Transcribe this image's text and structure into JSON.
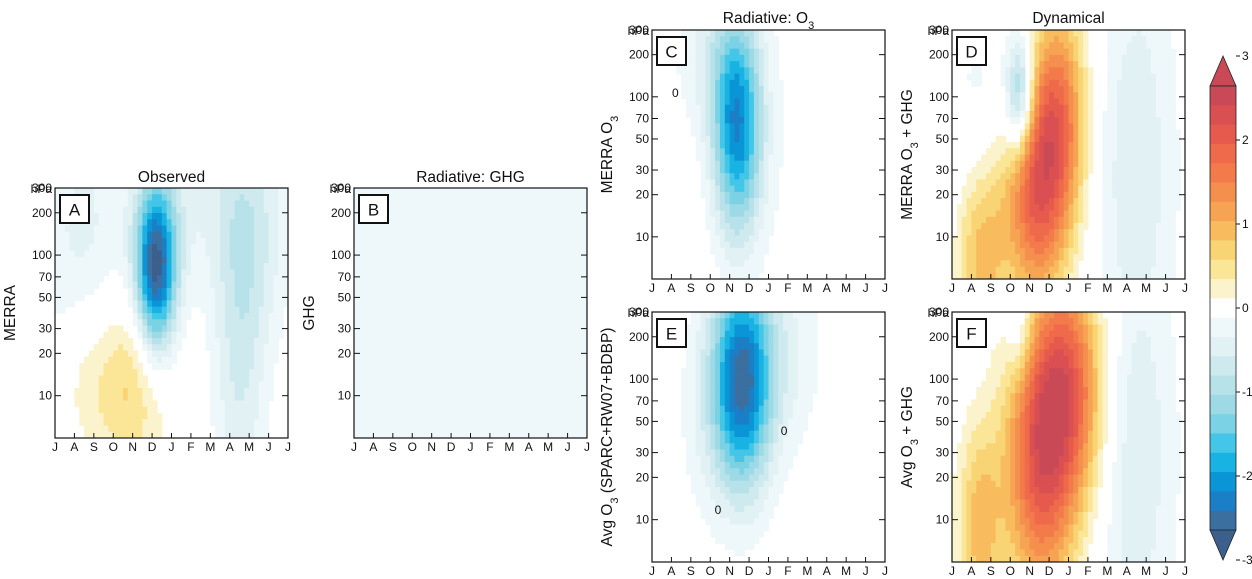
{
  "chart_data": [
    {
      "type": "heatmap",
      "panel_label": "A",
      "title": "Observed",
      "ylabel": "MERRA",
      "y_unit": "hPa",
      "months": [
        "J",
        "A",
        "S",
        "O",
        "N",
        "D",
        "J",
        "F",
        "M",
        "A",
        "M",
        "J",
        "J"
      ],
      "pressure_ticks": [
        10,
        20,
        30,
        50,
        70,
        100,
        200,
        300
      ],
      "ylim": [
        300,
        5
      ],
      "log_y": true,
      "blobs": [
        {
          "mi": 5.2,
          "p": 80,
          "sx": 0.75,
          "sy": 0.42,
          "amp": -3.0
        },
        {
          "mi": 3.6,
          "p": 12,
          "sx": 1.5,
          "sy": 0.45,
          "amp": 0.9
        },
        {
          "mi": 1.2,
          "p": 15,
          "sx": 0.9,
          "sy": 0.45,
          "amp": 0.4
        },
        {
          "mi": 9.5,
          "p": 30,
          "sx": 1.0,
          "sy": 1.1,
          "amp": -0.8
        },
        {
          "mi": 1.3,
          "p": 90,
          "sx": 1.5,
          "sy": 0.9,
          "amp": -0.6
        },
        {
          "mi": 6.8,
          "p": 250,
          "sx": 2.2,
          "sy": 0.5,
          "amp": -0.45
        },
        {
          "mi": 10.8,
          "p": 150,
          "sx": 1.2,
          "sy": 0.6,
          "amp": -0.45
        }
      ],
      "hatch": [
        {
          "m0": 5.2,
          "m1": 12,
          "p0": 300,
          "p1": 8
        }
      ],
      "contours": []
    },
    {
      "type": "heatmap",
      "panel_label": "B",
      "title": "Radiative: GHG",
      "ylabel": "GHG",
      "y_unit": "hPa",
      "months": [
        "J",
        "A",
        "S",
        "O",
        "N",
        "D",
        "J",
        "F",
        "M",
        "A",
        "M",
        "J",
        "J"
      ],
      "pressure_ticks": [
        10,
        20,
        30,
        50,
        70,
        100,
        200,
        300
      ],
      "ylim": [
        300,
        5
      ],
      "log_y": true,
      "blobs": [
        {
          "mi": 6,
          "p": 50,
          "sx": 12,
          "sy": 3,
          "amp": -0.4
        }
      ],
      "hatch": [
        {
          "m0": 0,
          "m1": 12,
          "p0": 300,
          "p1": 5
        }
      ],
      "contours": []
    },
    {
      "type": "heatmap",
      "panel_label": "C",
      "title": "Radiative: O",
      "title_sub": "3",
      "ylabel": "MERRA O",
      "ylabel_sub": "3",
      "y_unit": "hPa",
      "months": [
        "J",
        "A",
        "S",
        "O",
        "N",
        "D",
        "J",
        "F",
        "M",
        "A",
        "M",
        "J",
        "J"
      ],
      "pressure_ticks": [
        10,
        20,
        30,
        50,
        70,
        100,
        200,
        300
      ],
      "ylim": [
        300,
        5
      ],
      "log_y": true,
      "blobs": [
        {
          "mi": 4.4,
          "p": 60,
          "sx": 0.9,
          "sy": 0.55,
          "amp": -2.4
        },
        {
          "mi": 3.0,
          "p": 200,
          "sx": 1.4,
          "sy": 0.4,
          "amp": -0.5
        },
        {
          "mi": 8.5,
          "p": 50,
          "sx": 2.5,
          "sy": 1.2,
          "amp": -0.2
        }
      ],
      "hatch": [
        {
          "m0": 4.8,
          "m1": 12,
          "p0": 300,
          "p1": 5
        }
      ],
      "contours": [
        {
          "label": "0",
          "mi": 1.2,
          "p": 100
        }
      ]
    },
    {
      "type": "heatmap",
      "panel_label": "D",
      "title": "Dynamical",
      "ylabel": "MERRA O",
      "ylabel_sub": "3",
      "ylabel_suffix": " + GHG",
      "y_unit": "hPa",
      "months": [
        "J",
        "A",
        "S",
        "O",
        "N",
        "D",
        "J",
        "F",
        "M",
        "A",
        "M",
        "J",
        "J"
      ],
      "pressure_ticks": [
        10,
        20,
        30,
        50,
        70,
        100,
        200,
        300
      ],
      "ylim": [
        300,
        5
      ],
      "log_y": true,
      "blobs": [
        {
          "mi": 4.3,
          "p": 20,
          "sx": 1.2,
          "sy": 0.55,
          "amp": 2.1
        },
        {
          "mi": 5.5,
          "p": 80,
          "sx": 1.0,
          "sy": 0.55,
          "amp": 1.7
        },
        {
          "mi": 1.5,
          "p": 8,
          "sx": 0.9,
          "sy": 0.5,
          "amp": 1.2
        },
        {
          "mi": 3.5,
          "p": 100,
          "sx": 0.5,
          "sy": 0.3,
          "amp": -1.8
        },
        {
          "mi": 9.5,
          "p": 30,
          "sx": 1.5,
          "sy": 1.2,
          "amp": -0.7
        },
        {
          "mi": 1.5,
          "p": 60,
          "sx": 1.2,
          "sy": 0.7,
          "amp": -0.4
        }
      ],
      "hatch": [
        {
          "m0": 4.0,
          "m1": 6.6,
          "p0": 220,
          "p1": 8
        },
        {
          "m0": 10.5,
          "m1": 12,
          "p0": 200,
          "p1": 20
        }
      ],
      "contours": []
    },
    {
      "type": "heatmap",
      "panel_label": "E",
      "title": "",
      "ylabel": "Avg O",
      "ylabel_sub": "3",
      "ylabel_suffix": " (SPARC+RW07+BDBP)",
      "y_unit": "hPa",
      "months": [
        "J",
        "A",
        "S",
        "O",
        "N",
        "D",
        "J",
        "F",
        "M",
        "A",
        "M",
        "J",
        "J"
      ],
      "pressure_ticks": [
        10,
        20,
        30,
        50,
        70,
        100,
        200,
        300
      ],
      "ylim": [
        300,
        5
      ],
      "log_y": true,
      "blobs": [
        {
          "mi": 4.6,
          "p": 95,
          "sx": 1.1,
          "sy": 0.55,
          "amp": -2.8
        },
        {
          "mi": 6.8,
          "p": 150,
          "sx": 1.5,
          "sy": 0.5,
          "amp": -0.5
        },
        {
          "mi": 2.5,
          "p": 60,
          "sx": 1.0,
          "sy": 0.6,
          "amp": -0.3
        }
      ],
      "hatch": [
        {
          "m0": 0,
          "m1": 12,
          "p0": 300,
          "p1": 5
        }
      ],
      "contours": [
        {
          "label": "0",
          "mi": 3.4,
          "p": 11
        },
        {
          "label": "0",
          "mi": 6.8,
          "p": 40
        }
      ]
    },
    {
      "type": "heatmap",
      "panel_label": "F",
      "title": "",
      "ylabel": "Avg O",
      "ylabel_sub": "3",
      "ylabel_suffix": " + GHG",
      "y_unit": "hPa",
      "months": [
        "J",
        "A",
        "S",
        "O",
        "N",
        "D",
        "J",
        "F",
        "M",
        "A",
        "M",
        "J",
        "J"
      ],
      "pressure_ticks": [
        10,
        20,
        30,
        50,
        70,
        100,
        200,
        300
      ],
      "ylim": [
        300,
        5
      ],
      "log_y": true,
      "blobs": [
        {
          "mi": 4.5,
          "p": 25,
          "sx": 1.3,
          "sy": 0.7,
          "amp": 2.1
        },
        {
          "mi": 6.0,
          "p": 90,
          "sx": 1.3,
          "sy": 0.6,
          "amp": 2.0
        },
        {
          "mi": 1.4,
          "p": 9,
          "sx": 0.8,
          "sy": 0.5,
          "amp": 1.1
        },
        {
          "mi": 3.5,
          "p": 220,
          "sx": 0.5,
          "sy": 0.25,
          "amp": -0.7
        },
        {
          "mi": 9.5,
          "p": 30,
          "sx": 1.5,
          "sy": 1.2,
          "amp": -0.7
        }
      ],
      "hatch": [
        {
          "m0": 4.4,
          "m1": 8.4,
          "p0": 180,
          "p1": 8
        }
      ],
      "contours": []
    }
  ],
  "colorbar": {
    "ticks": [
      3,
      2,
      1,
      0,
      -1,
      -2,
      -3
    ],
    "levels": [
      -3,
      -2.75,
      -2.5,
      -2.25,
      -2,
      -1.75,
      -1.5,
      -1.25,
      -1,
      -0.75,
      -0.5,
      -0.25,
      0.25,
      0.5,
      0.75,
      1,
      1.25,
      1.5,
      1.75,
      2,
      2.25,
      2.5,
      2.75,
      3
    ],
    "colors": [
      "#3a6fa0",
      "#1a7fc6",
      "#0a96d6",
      "#19b3e3",
      "#43c6e8",
      "#7bd2e4",
      "#9ddae6",
      "#b7e2ea",
      "#cfeaef",
      "#e2f1f4",
      "#eef7f9",
      "#ffffff",
      "#fbf3cc",
      "#fbe596",
      "#f9d474",
      "#f8bc5e",
      "#f6a453",
      "#f58f4d",
      "#f27a4b",
      "#ee6a4a",
      "#e65a4d",
      "#d94f52",
      "#c94a56"
    ],
    "below_color": "#3d5f8c",
    "above_color": "#c94a56"
  }
}
